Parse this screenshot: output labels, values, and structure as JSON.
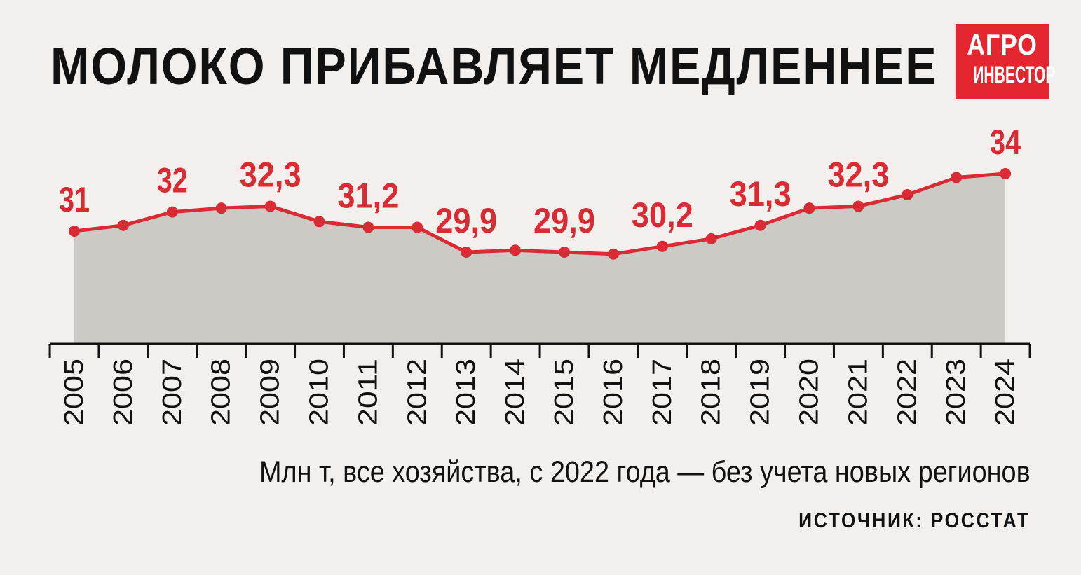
{
  "title": "МОЛОКО ПРИБАВЛЯЕТ МЕДЛЕННЕЕ",
  "logo": {
    "line1": "АГРО",
    "line2": "ИНВЕСТОР"
  },
  "subtitle": "Млн т, все хозяйства, с 2022 года — без учета новых регионов",
  "source": "ИСТОЧНИК: РОССТАТ",
  "colors": {
    "background": "#f3efec",
    "line": "#d92b34",
    "area": "#cdc9c5",
    "axis": "#111111",
    "logo": "#e3262f"
  },
  "chart_data": {
    "type": "area",
    "x": [
      "2005",
      "2006",
      "2007",
      "2008",
      "2009",
      "2010",
      "2011",
      "2012",
      "2013",
      "2014",
      "2015",
      "2016",
      "2017",
      "2018",
      "2019",
      "2020",
      "2021",
      "2022",
      "2023",
      "2024"
    ],
    "series": [
      {
        "values": [
          31,
          31.3,
          32,
          32.2,
          32.3,
          31.5,
          31.2,
          31.2,
          29.9,
          30.0,
          29.9,
          29.8,
          30.2,
          30.6,
          31.3,
          32.2,
          32.3,
          32.9,
          33.8,
          34
        ]
      }
    ],
    "data_labels": [
      {
        "index": 0,
        "text": "31"
      },
      {
        "index": 2,
        "text": "32"
      },
      {
        "index": 4,
        "text": "32,3"
      },
      {
        "index": 6,
        "text": "31,2"
      },
      {
        "index": 8,
        "text": "29,9"
      },
      {
        "index": 10,
        "text": "29,9"
      },
      {
        "index": 12,
        "text": "30,2"
      },
      {
        "index": 14,
        "text": "31,3"
      },
      {
        "index": 16,
        "text": "32,3"
      },
      {
        "index": 19,
        "text": "34"
      }
    ],
    "grid": false,
    "legend": "none"
  }
}
